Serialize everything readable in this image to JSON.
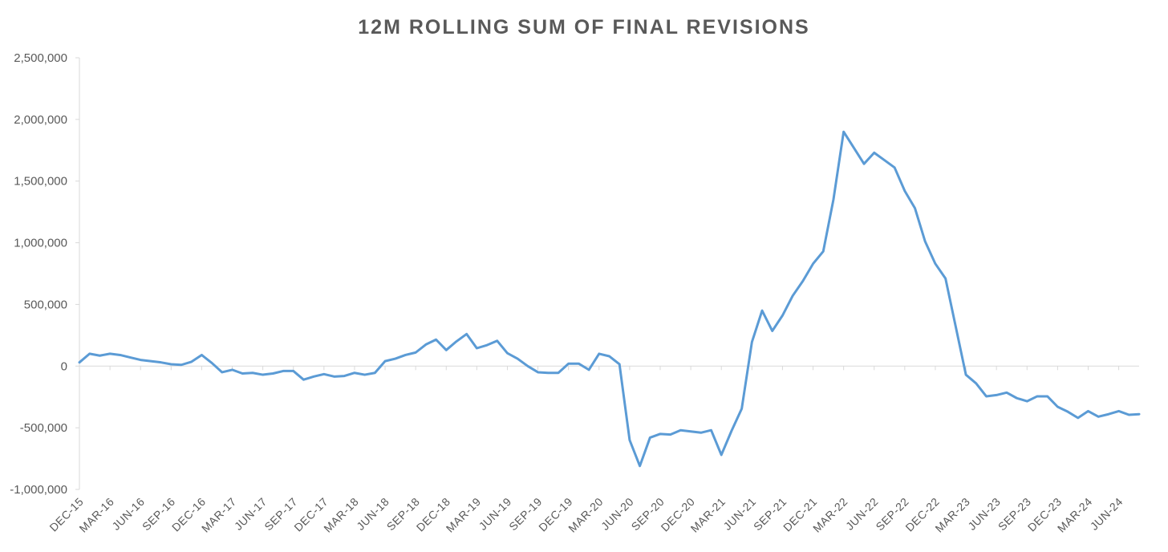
{
  "chart_data": {
    "type": "line",
    "title": "12M ROLLING SUM OF FINAL REVISIONS",
    "xlabel": "",
    "ylabel": "",
    "ylim": [
      -1000000,
      2500000
    ],
    "y_ticks": [
      2500000,
      2000000,
      1500000,
      1000000,
      500000,
      0,
      -500000,
      -1000000
    ],
    "y_tick_labels": [
      "2,500,000",
      "2,000,000",
      "1,500,000",
      "1,000,000",
      "500,000",
      "0",
      "-500,000",
      "-1,000,000"
    ],
    "x_tick_labels": [
      "DEC-15",
      "MAR-16",
      "JUN-16",
      "SEP-16",
      "DEC-16",
      "MAR-17",
      "JUN-17",
      "SEP-17",
      "DEC-17",
      "MAR-18",
      "JUN-18",
      "SEP-18",
      "DEC-18",
      "MAR-19",
      "JUN-19",
      "SEP-19",
      "DEC-19",
      "MAR-20",
      "JUN-20",
      "SEP-20",
      "DEC-20",
      "MAR-21",
      "JUN-21",
      "SEP-21",
      "DEC-21",
      "MAR-22",
      "JUN-22",
      "SEP-22",
      "DEC-22",
      "MAR-23",
      "JUN-23",
      "SEP-23",
      "DEC-23",
      "MAR-24",
      "JUN-24"
    ],
    "x_start": "DEC-15",
    "x_end": "JUL-24",
    "grid": false,
    "legend": "none",
    "line_color": "#5B9BD5",
    "axis_color": "#D9D9D9",
    "series": [
      {
        "values": [
          30000,
          100000,
          85000,
          100000,
          90000,
          70000,
          50000,
          40000,
          30000,
          15000,
          10000,
          35000,
          90000,
          25000,
          -50000,
          -30000,
          -60000,
          -55000,
          -70000,
          -60000,
          -40000,
          -40000,
          -110000,
          -85000,
          -65000,
          -85000,
          -80000,
          -55000,
          -70000,
          -55000,
          40000,
          60000,
          90000,
          110000,
          175000,
          215000,
          130000,
          200000,
          260000,
          145000,
          170000,
          205000,
          105000,
          60000,
          0,
          -50000,
          -55000,
          -55000,
          20000,
          20000,
          -30000,
          100000,
          80000,
          15000,
          -600000,
          -810000,
          -580000,
          -550000,
          -555000,
          -520000,
          -530000,
          -540000,
          -520000,
          -720000,
          -525000,
          -345000,
          195000,
          450000,
          285000,
          410000,
          570000,
          690000,
          830000,
          930000,
          1350000,
          1900000,
          1770000,
          1640000,
          1730000,
          1670000,
          1610000,
          1420000,
          1280000,
          1010000,
          830000,
          710000,
          320000,
          -70000,
          -140000,
          -245000,
          -235000,
          -215000,
          -260000,
          -285000,
          -245000,
          -245000,
          -330000,
          -370000,
          -420000,
          -365000,
          -410000,
          -390000,
          -365000,
          -395000,
          -390000
        ]
      }
    ]
  }
}
